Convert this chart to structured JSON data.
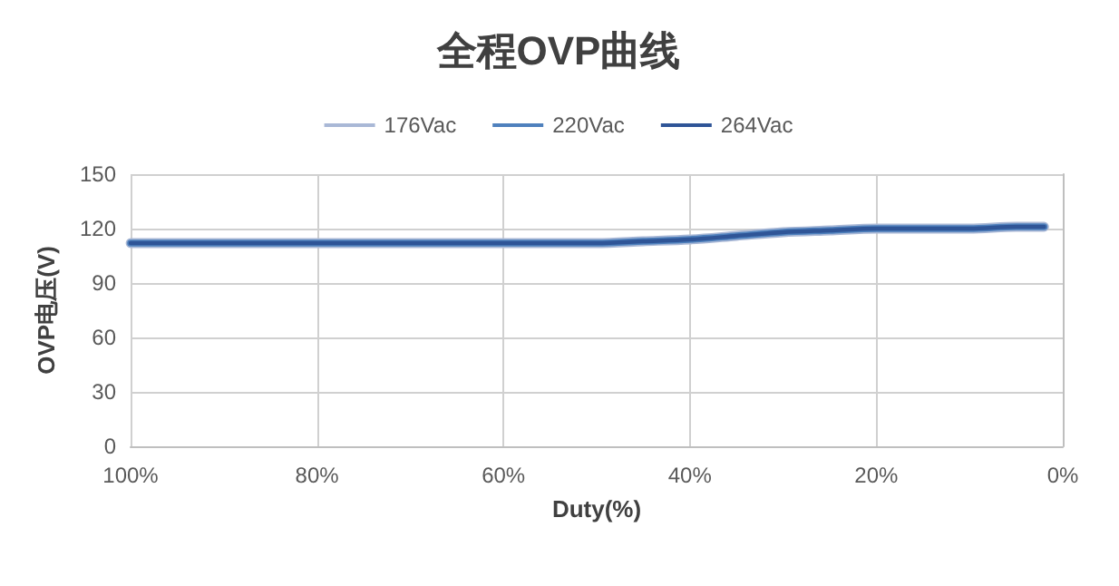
{
  "chart_data": {
    "type": "line",
    "title": "全程OVP曲线",
    "xlabel": "Duty(%)",
    "ylabel": "OVP电压(V)",
    "x": [
      100,
      80,
      60,
      50,
      45,
      40,
      35,
      30,
      25,
      20,
      10,
      5,
      2
    ],
    "series": [
      {
        "name": "176Vac",
        "color": "#a9b8d6",
        "values": [
          112,
          112,
          112,
          112,
          113,
          114,
          116,
          118,
          119,
          120,
          120,
          121,
          121
        ]
      },
      {
        "name": "220Vac",
        "color": "#4f81bd",
        "values": [
          112,
          112,
          112,
          112,
          113,
          114,
          116,
          118,
          119,
          120,
          120,
          121,
          121
        ]
      },
      {
        "name": "264Vac",
        "color": "#2f5597",
        "values": [
          112,
          112,
          112,
          112,
          113,
          114,
          116,
          118,
          119,
          120,
          120,
          121,
          121
        ]
      }
    ],
    "xlim": [
      100,
      0
    ],
    "xticks": [
      {
        "value": 100,
        "label": "100%"
      },
      {
        "value": 80,
        "label": "80%"
      },
      {
        "value": 60,
        "label": "60%"
      },
      {
        "value": 40,
        "label": "40%"
      },
      {
        "value": 20,
        "label": "20%"
      },
      {
        "value": 0,
        "label": "0%"
      }
    ],
    "ylim": [
      0,
      150
    ],
    "yticks": [
      0,
      30,
      60,
      90,
      120,
      150
    ],
    "grid": true,
    "legend": "top",
    "marker": "none",
    "line_style": "solid"
  }
}
